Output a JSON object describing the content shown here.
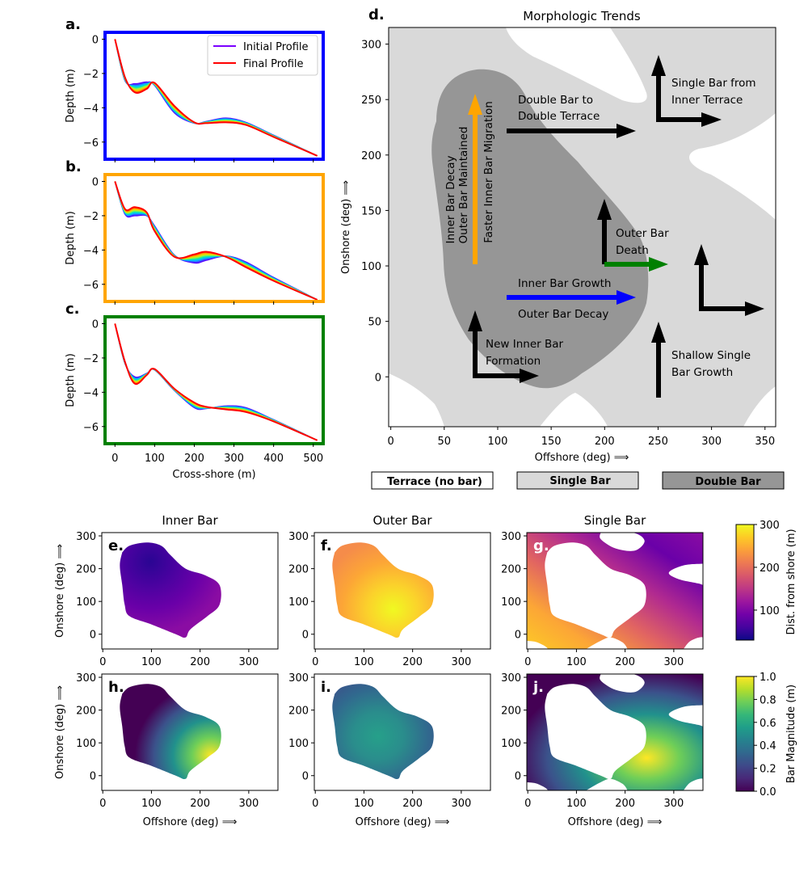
{
  "colors": {
    "terrace": "#ffffff",
    "single": "#d9d9d9",
    "double": "#969696",
    "frame_a": "#0000ff",
    "frame_b": "#ffa500",
    "frame_c": "#008000",
    "arrow_black": "#000000",
    "arrow_orange": "#ffa500",
    "arrow_blue": "#0000ff",
    "arrow_green": "#008000"
  },
  "panels": {
    "a": "a.",
    "b": "b.",
    "c": "c.",
    "d": "d.",
    "e": "e.",
    "f": "f.",
    "g": "g.",
    "h": "h.",
    "i": "i.",
    "j": "j."
  },
  "profiles": {
    "ylabel": "Depth (m)",
    "xlabel": "Cross-shore (m)",
    "legend": {
      "initial": "Initial Profile",
      "final": "Final Profile"
    },
    "x_ticks": [
      "0",
      "100",
      "200",
      "300",
      "400",
      "500"
    ],
    "y_ticks": [
      "0",
      "−2",
      "−4",
      "−6"
    ]
  },
  "trends": {
    "title": "Morphologic Trends",
    "xlabel": "Offshore (deg)  ⟹",
    "ylabel": "Onshore (deg)  ⟹",
    "x_ticks": [
      "0",
      "50",
      "100",
      "150",
      "200",
      "250",
      "300",
      "350"
    ],
    "y_ticks": [
      "0",
      "50",
      "100",
      "150",
      "200",
      "250",
      "300"
    ],
    "annotations": {
      "double_to_terrace_1": "Double Bar to",
      "double_to_terrace_2": "Double Terrace",
      "single_from_terrace_1": "Single Bar from",
      "single_from_terrace_2": "Inner Terrace",
      "inner_decay": "Inner Bar Decay",
      "outer_maintained": "Outer Bar Maintained",
      "faster_migration": "Faster Inner Bar Migration",
      "outer_death_1": "Outer Bar",
      "outer_death_2": "Death",
      "inner_growth": "Inner Bar Growth",
      "outer_decay": "Outer Bar Decay",
      "new_inner_1": "New Inner Bar",
      "new_inner_2": "Formation",
      "shallow_1": "Shallow Single",
      "shallow_2": "Bar Growth"
    },
    "legend": {
      "terrace": "Terrace (no bar)",
      "single": "Single Bar",
      "double": "Double Bar"
    }
  },
  "maps": {
    "titles": {
      "inner": "Inner Bar",
      "outer": "Outer Bar",
      "single": "Single Bar"
    },
    "xlabel": "Offshore (deg)  ⟹",
    "ylabel": "Onshore (deg)  ⟹",
    "x_ticks": [
      "0",
      "100",
      "200",
      "300"
    ],
    "y_ticks": [
      "0",
      "100",
      "200",
      "300"
    ],
    "colorbar_dist": {
      "label": "Dist. from shore (m)",
      "ticks": [
        "100",
        "200",
        "300"
      ]
    },
    "colorbar_mag": {
      "label": "Bar Magnitude (m)",
      "ticks": [
        "0.0",
        "0.2",
        "0.4",
        "0.6",
        "0.8",
        "1.0"
      ]
    }
  },
  "chart_data": [
    {
      "type": "line",
      "panel": "a",
      "xlim": [
        -25,
        525
      ],
      "ylim": [
        -7.0,
        0.4
      ],
      "xlabel": "",
      "ylabel": "Depth (m)",
      "series": [
        {
          "name": "Initial Profile",
          "x": [
            0,
            25,
            50,
            80,
            100,
            150,
            200,
            230,
            280,
            330,
            400,
            510
          ],
          "values": [
            0,
            -2.4,
            -2.6,
            -2.5,
            -2.7,
            -4.3,
            -4.9,
            -4.8,
            -4.6,
            -4.85,
            -5.6,
            -6.8
          ]
        },
        {
          "name": "Final Profile",
          "x": [
            0,
            25,
            50,
            80,
            100,
            150,
            200,
            230,
            280,
            330,
            400,
            510
          ],
          "values": [
            0,
            -2.2,
            -3.1,
            -2.9,
            -2.55,
            -3.9,
            -4.85,
            -4.9,
            -4.85,
            -5.0,
            -5.7,
            -6.8
          ]
        }
      ]
    },
    {
      "type": "line",
      "panel": "b",
      "xlim": [
        -25,
        525
      ],
      "ylim": [
        -7.0,
        0.4
      ],
      "xlabel": "",
      "ylabel": "Depth (m)",
      "series": [
        {
          "name": "Initial Profile",
          "x": [
            0,
            25,
            50,
            80,
            100,
            150,
            200,
            230,
            280,
            330,
            400,
            510
          ],
          "values": [
            0,
            -1.9,
            -2.0,
            -2.0,
            -2.6,
            -4.3,
            -4.75,
            -4.6,
            -4.35,
            -4.7,
            -5.6,
            -6.9
          ]
        },
        {
          "name": "Final Profile",
          "x": [
            0,
            25,
            50,
            80,
            100,
            150,
            200,
            230,
            280,
            330,
            400,
            510
          ],
          "values": [
            0,
            -1.6,
            -1.5,
            -1.8,
            -2.9,
            -4.4,
            -4.25,
            -4.1,
            -4.4,
            -5.0,
            -5.8,
            -6.9
          ]
        }
      ]
    },
    {
      "type": "line",
      "panel": "c",
      "xlim": [
        -25,
        525
      ],
      "ylim": [
        -7.0,
        0.4
      ],
      "xlabel": "Cross-shore (m)",
      "ylabel": "Depth (m)",
      "series": [
        {
          "name": "Initial Profile",
          "x": [
            0,
            25,
            50,
            80,
            100,
            150,
            200,
            230,
            280,
            330,
            400,
            510
          ],
          "values": [
            0,
            -2.3,
            -3.1,
            -2.9,
            -2.7,
            -3.9,
            -4.9,
            -4.95,
            -4.8,
            -4.9,
            -5.6,
            -6.8
          ]
        },
        {
          "name": "Final Profile",
          "x": [
            0,
            25,
            50,
            80,
            100,
            150,
            200,
            230,
            280,
            330,
            400,
            510
          ],
          "values": [
            0,
            -2.2,
            -3.5,
            -3.0,
            -2.65,
            -3.8,
            -4.6,
            -4.85,
            -5.0,
            -5.15,
            -5.7,
            -6.8
          ]
        }
      ]
    },
    {
      "type": "heatmap",
      "panel": "d",
      "title": "Morphologic Trends",
      "xlim": [
        -2,
        360
      ],
      "ylim": [
        -45,
        315
      ],
      "xlabel": "Offshore (deg) ⟹",
      "ylabel": "Onshore (deg) ⟹",
      "categories": [
        "Terrace (no bar)",
        "Single Bar",
        "Double Bar"
      ]
    },
    {
      "type": "heatmap",
      "panel": "e",
      "title": "Inner Bar",
      "xlim": [
        -2,
        360
      ],
      "ylim": [
        -45,
        310
      ],
      "colorbar": "Dist. from shore (m)",
      "clim": [
        30,
        300
      ]
    },
    {
      "type": "heatmap",
      "panel": "f",
      "title": "Outer Bar",
      "xlim": [
        -2,
        360
      ],
      "ylim": [
        -45,
        310
      ],
      "colorbar": "Dist. from shore (m)",
      "clim": [
        30,
        300
      ]
    },
    {
      "type": "heatmap",
      "panel": "g",
      "title": "Single Bar",
      "xlim": [
        -2,
        360
      ],
      "ylim": [
        -45,
        310
      ],
      "colorbar": "Dist. from shore (m)",
      "clim": [
        30,
        300
      ]
    },
    {
      "type": "heatmap",
      "panel": "h",
      "xlim": [
        -2,
        360
      ],
      "ylim": [
        -45,
        310
      ],
      "colorbar": "Bar Magnitude (m)",
      "clim": [
        0,
        1
      ]
    },
    {
      "type": "heatmap",
      "panel": "i",
      "xlim": [
        -2,
        360
      ],
      "ylim": [
        -45,
        310
      ],
      "colorbar": "Bar Magnitude (m)",
      "clim": [
        0,
        1
      ]
    },
    {
      "type": "heatmap",
      "panel": "j",
      "xlim": [
        -2,
        360
      ],
      "ylim": [
        -45,
        310
      ],
      "colorbar": "Bar Magnitude (m)",
      "clim": [
        0,
        1
      ]
    }
  ]
}
